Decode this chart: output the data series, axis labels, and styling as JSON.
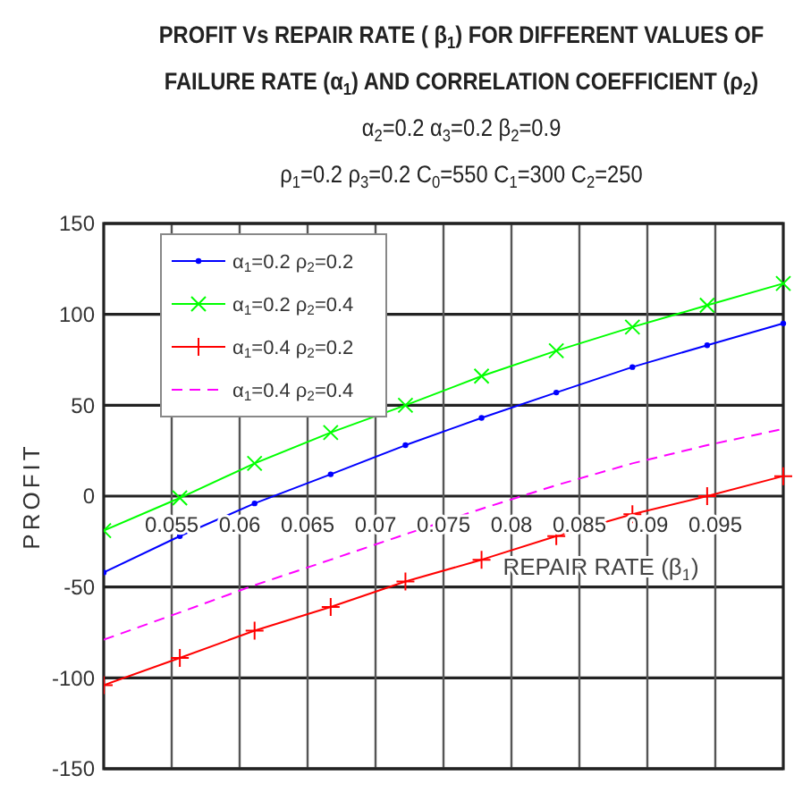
{
  "chart_data": {
    "type": "line",
    "title": "PROFIT Vs REPAIR RATE ( β$_{1}$) FOR DIFFERENT VALUES OF FAILURE RATE (α$_{1}$) AND CORRELATION COEFFICIENT (ρ$_{2}$)",
    "subtitle": "α$_{2}$=0.2 α$_{3}$=0.2 β$_{2}$=0.9",
    "annotations": [
      "ρ$_{1}$=0.2 ρ$_{3}$=0.2 C$_{0}$=550 C$_{1}$=300 C$_{2}$=250"
    ],
    "xlabel": "REPAIR RATE (β$_{1}$)",
    "ylabel": "PROFIT",
    "x": [
      0.05,
      0.0556,
      0.0611,
      0.0667,
      0.0722,
      0.0778,
      0.0833,
      0.0889,
      0.0944,
      0.1
    ],
    "series": [
      {
        "name": "α$_{1}$=0.2 ρ$_{2}$=0.2",
        "color": "#0000ff",
        "marker": "circle",
        "line_style": "solid",
        "values": [
          -42,
          -22,
          -4,
          12,
          28,
          43,
          57,
          71,
          83,
          95
        ]
      },
      {
        "name": "α$_{1}$=0.2 ρ$_{2}$=0.4",
        "color": "#00ff00",
        "marker": "cross",
        "line_style": "solid",
        "values": [
          -19,
          -1,
          18,
          35,
          50,
          66,
          80,
          93,
          105,
          117
        ]
      },
      {
        "name": "α$_{1}$=0.4 ρ$_{2}$=0.2",
        "color": "#ff0000",
        "marker": "plus",
        "line_style": "solid",
        "values": [
          -104,
          -89,
          -74,
          -61,
          -47,
          -35,
          -22,
          -10,
          0,
          11
        ]
      },
      {
        "name": "α$_{1}$=0.4 ρ$_{2}$=0.4",
        "color": "#ff00ff",
        "marker": "none",
        "line_style": "dashed",
        "values": [
          -79,
          -64,
          -49,
          -35,
          -21,
          -7,
          6,
          18,
          28,
          37
        ]
      }
    ],
    "xlim": [
      0.05,
      0.1
    ],
    "xticks": [
      0.055,
      0.06,
      0.065,
      0.07,
      0.075,
      0.08,
      0.085,
      0.09,
      0.095
    ],
    "ylim": [
      -150,
      150
    ],
    "yticks": [
      -150,
      -100,
      -50,
      0,
      50,
      100,
      150
    ],
    "grid": true,
    "legend": "top left"
  }
}
